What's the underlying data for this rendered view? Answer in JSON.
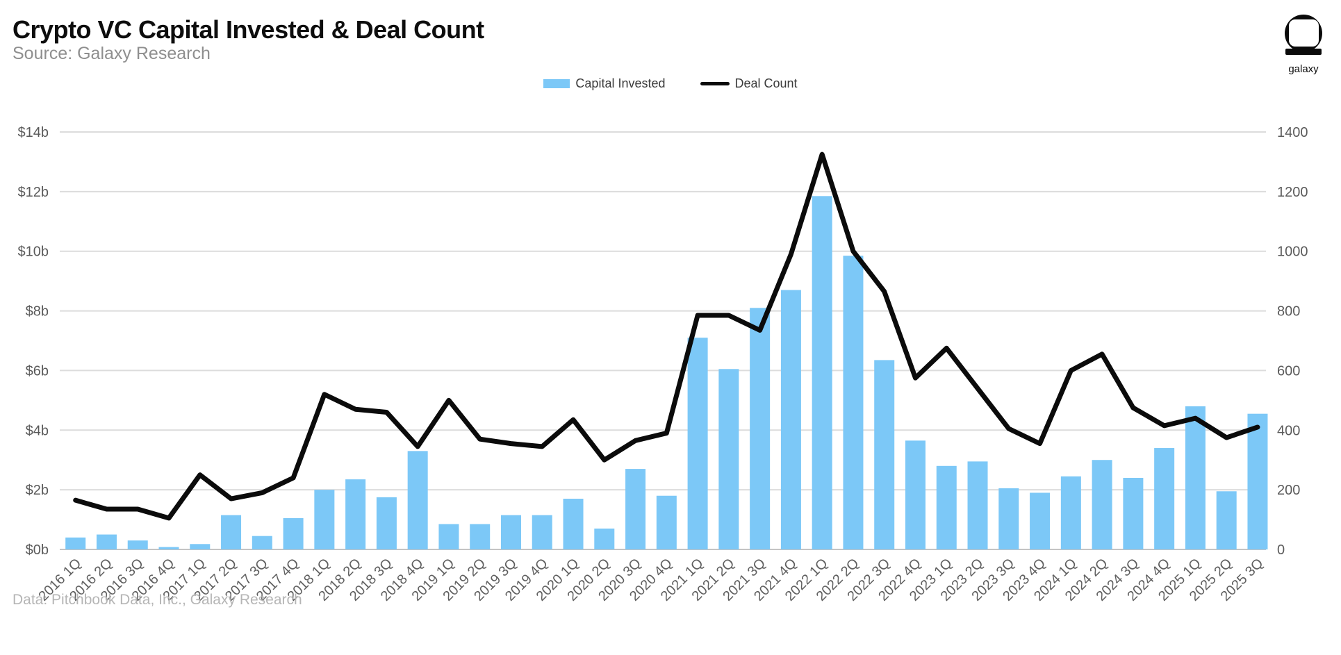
{
  "header": {
    "title": "Crypto VC Capital Invested & Deal Count",
    "subtitle": "Source: Galaxy Research",
    "logo_text": "galaxy"
  },
  "legend": [
    {
      "label": "Capital Invested",
      "type": "bar",
      "color": "#7cc8f7"
    },
    {
      "label": "Deal Count",
      "type": "line",
      "color": "#0b0b0b"
    }
  ],
  "footer": {
    "text": "Data: Pitchbook Data, Inc., Galaxy Research"
  },
  "chart_data": {
    "type": "bar+line combo",
    "title": "Crypto VC Capital Invested & Deal Count",
    "grid": "horizontal only",
    "legend_position": "top-center",
    "categories": [
      "2016 1Q",
      "2016 2Q",
      "2016 3Q",
      "2016 4Q",
      "2017 1Q",
      "2017 2Q",
      "2017 3Q",
      "2017 4Q",
      "2018 1Q",
      "2018 2Q",
      "2018 3Q",
      "2018 4Q",
      "2019 1Q",
      "2019 2Q",
      "2019 3Q",
      "2019 4Q",
      "2020 1Q",
      "2020 2Q",
      "2020 3Q",
      "2020 4Q",
      "2021 1Q",
      "2021 2Q",
      "2021 3Q",
      "2021 4Q",
      "2022 1Q",
      "2022 2Q",
      "2022 3Q",
      "2022 4Q",
      "2023 1Q",
      "2023 2Q",
      "2023 3Q",
      "2023 4Q",
      "2024 1Q",
      "2024 2Q",
      "2024 3Q",
      "2024 4Q",
      "2025 1Q",
      "2025 2Q",
      "2025 3Q"
    ],
    "series": [
      {
        "name": "Capital Invested",
        "type": "bar",
        "axis": "left",
        "unit": "$ billions",
        "color": "#7cc8f7",
        "values": [
          0.4,
          0.5,
          0.3,
          0.08,
          0.18,
          1.15,
          0.45,
          1.05,
          2.0,
          2.35,
          1.75,
          3.3,
          0.85,
          0.85,
          1.15,
          1.15,
          1.7,
          0.7,
          2.7,
          1.8,
          7.1,
          6.05,
          8.1,
          8.7,
          11.85,
          9.85,
          6.35,
          3.65,
          2.8,
          2.95,
          2.05,
          1.9,
          2.45,
          3.0,
          2.4,
          3.4,
          4.8,
          1.95,
          4.55
        ]
      },
      {
        "name": "Deal Count",
        "type": "line",
        "axis": "right",
        "unit": "deals",
        "color": "#0b0b0b",
        "values": [
          165,
          135,
          135,
          105,
          250,
          170,
          190,
          240,
          520,
          470,
          460,
          345,
          500,
          370,
          355,
          345,
          435,
          300,
          365,
          390,
          785,
          785,
          735,
          990,
          1325,
          1000,
          865,
          575,
          675,
          540,
          405,
          355,
          600,
          655,
          475,
          415,
          440,
          375,
          410
        ]
      }
    ],
    "left_axis": {
      "min": 0,
      "max": 14,
      "step": 2,
      "tick_labels": [
        "$0b",
        "$2b",
        "$4b",
        "$6b",
        "$8b",
        "$10b",
        "$12b",
        "$14b"
      ]
    },
    "right_axis": {
      "min": 0,
      "max": 1400,
      "step": 200,
      "tick_labels": [
        "0",
        "200",
        "400",
        "600",
        "800",
        "1000",
        "1200",
        "1400"
      ]
    }
  }
}
